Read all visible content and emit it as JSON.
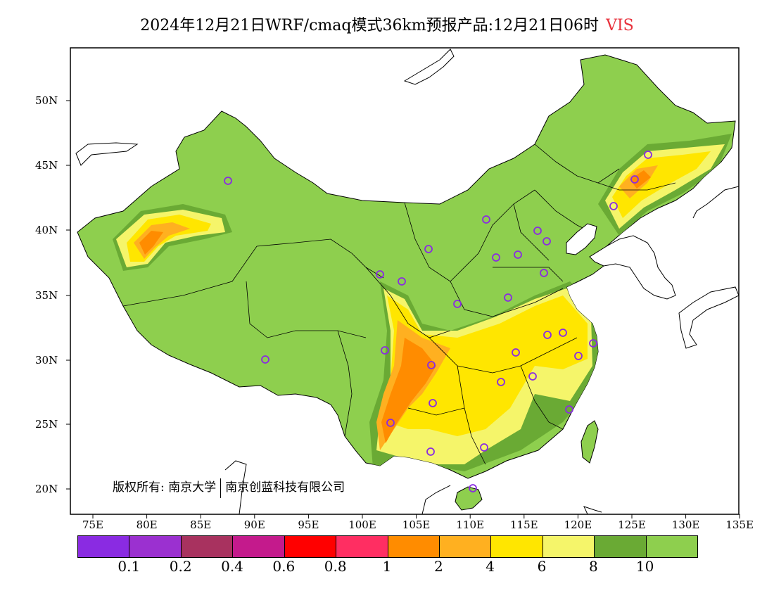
{
  "title": {
    "main": "2024年12月21日WRF/cmaq模式36km预报产品:12月21日06时",
    "variable": "VIS"
  },
  "map": {
    "lat_labels": [
      "50N",
      "45N",
      "40N",
      "35N",
      "30N",
      "25N",
      "20N"
    ],
    "lon_labels": [
      "75E",
      "80E",
      "85E",
      "90E",
      "95E",
      "100E",
      "105E",
      "110E",
      "115E",
      "120E",
      "125E",
      "130E",
      "135E"
    ],
    "copyright_prefix": "版权所有:",
    "owner_1": "南京大学",
    "owner_2": "南京创蓝科技有限公司"
  },
  "legend": {
    "colors": [
      "#8a2be2",
      "#9b30d0",
      "#a8325f",
      "#c41a8c",
      "#ff0000",
      "#ff2e62",
      "#ff8c00",
      "#ffb020",
      "#ffe600",
      "#f5f56a",
      "#6aaa34",
      "#8ecf4e"
    ],
    "labels": [
      "0.1",
      "0.2",
      "0.4",
      "0.6",
      "0.8",
      "1",
      "2",
      "4",
      "6",
      "8",
      "10"
    ]
  },
  "colors": {
    "background_land": "#8ecf4e",
    "dark_green": "#6aaa34",
    "station_marker": "#8a2be2"
  }
}
